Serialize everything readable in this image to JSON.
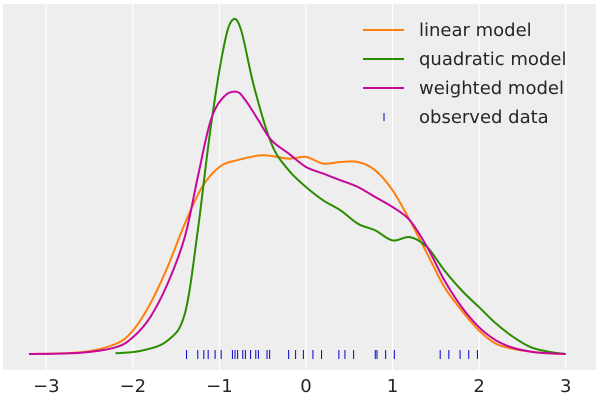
{
  "chart_data": {
    "type": "line",
    "title": "",
    "xlabel": "",
    "ylabel": "",
    "xlim": [
      -3.5,
      3.35
    ],
    "ylim": [
      0,
      1
    ],
    "grid": "x only",
    "y_ticks_visible": false,
    "x_ticks": [
      -3,
      -2,
      -1,
      0,
      1,
      2,
      3
    ],
    "x_tick_labels": [
      "−3",
      "−2",
      "−1",
      "0",
      "1",
      "2",
      "3"
    ],
    "legend_position": "top-right",
    "series": [
      {
        "name": "linear model",
        "color": "#ff7f0e",
        "x": [
          -3.2,
          -2.6,
          -2.2,
          -2.0,
          -1.8,
          -1.6,
          -1.4,
          -1.2,
          -1.0,
          -0.8,
          -0.5,
          -0.2,
          0.0,
          0.2,
          0.4,
          0.6,
          0.8,
          1.0,
          1.2,
          1.4,
          1.6,
          1.8,
          2.0,
          2.2,
          2.4,
          2.6,
          2.8,
          3.0
        ],
        "y": [
          0.0,
          0.005,
          0.03,
          0.07,
          0.15,
          0.26,
          0.39,
          0.5,
          0.56,
          0.58,
          0.595,
          0.585,
          0.59,
          0.57,
          0.575,
          0.575,
          0.55,
          0.49,
          0.4,
          0.3,
          0.2,
          0.13,
          0.07,
          0.03,
          0.015,
          0.007,
          0.002,
          0.0
        ]
      },
      {
        "name": "quadratic model",
        "color": "#2a8c00",
        "x": [
          -2.2,
          -1.9,
          -1.6,
          -1.4,
          -1.25,
          -1.1,
          -0.95,
          -0.85,
          -0.75,
          -0.6,
          -0.4,
          -0.2,
          0.0,
          0.2,
          0.4,
          0.6,
          0.8,
          1.0,
          1.2,
          1.4,
          1.6,
          1.8,
          2.0,
          2.2,
          2.4,
          2.6,
          2.8,
          3.0
        ],
        "y": [
          0.002,
          0.01,
          0.04,
          0.12,
          0.37,
          0.68,
          0.92,
          1.0,
          0.97,
          0.8,
          0.63,
          0.55,
          0.5,
          0.46,
          0.43,
          0.39,
          0.37,
          0.34,
          0.35,
          0.32,
          0.25,
          0.19,
          0.14,
          0.09,
          0.05,
          0.02,
          0.007,
          0.0
        ]
      },
      {
        "name": "weighted model",
        "color": "#c6089a",
        "x": [
          -3.2,
          -2.6,
          -2.2,
          -2.0,
          -1.8,
          -1.6,
          -1.4,
          -1.25,
          -1.1,
          -0.95,
          -0.8,
          -0.7,
          -0.55,
          -0.4,
          -0.2,
          0.0,
          0.2,
          0.4,
          0.6,
          0.8,
          1.0,
          1.2,
          1.4,
          1.6,
          1.8,
          2.0,
          2.2,
          2.4,
          2.6,
          2.8,
          3.0
        ],
        "y": [
          0.0,
          0.004,
          0.02,
          0.05,
          0.11,
          0.21,
          0.35,
          0.53,
          0.7,
          0.77,
          0.785,
          0.76,
          0.7,
          0.64,
          0.6,
          0.56,
          0.54,
          0.52,
          0.5,
          0.47,
          0.44,
          0.4,
          0.32,
          0.22,
          0.14,
          0.08,
          0.04,
          0.018,
          0.007,
          0.002,
          0.0
        ]
      }
    ],
    "rug": {
      "name": "observed data",
      "color": "#0000cc",
      "x": [
        -1.38,
        -1.25,
        -1.18,
        -1.13,
        -1.05,
        -0.98,
        -0.85,
        -0.82,
        -0.79,
        -0.73,
        -0.7,
        -0.64,
        -0.58,
        -0.55,
        -0.45,
        -0.42,
        -0.2,
        -0.12,
        -0.03,
        0.08,
        0.18,
        0.38,
        0.45,
        0.55,
        0.8,
        0.82,
        0.92,
        1.02,
        1.55,
        1.65,
        1.78,
        1.88,
        1.98
      ]
    }
  }
}
